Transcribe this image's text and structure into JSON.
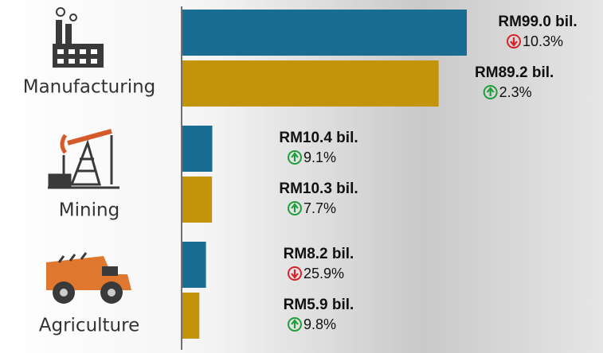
{
  "chart_data": {
    "type": "bar",
    "orientation": "horizontal",
    "categories": [
      "Manufacturing",
      "Mining",
      "Agriculture"
    ],
    "change_colors": {
      "up": "#1f9e3c",
      "down": "#d8232a"
    },
    "series": [
      {
        "color": "#1a6d92",
        "values": [
          99.0,
          10.4,
          8.2
        ],
        "value_labels": [
          "RM99.0 bil.",
          "RM10.4 bil.",
          "RM8.2 bil."
        ],
        "changes": [
          -10.3,
          9.1,
          -25.9
        ],
        "change_labels": [
          "10.3%",
          "9.1%",
          "25.9%"
        ]
      },
      {
        "color": "#c39409",
        "values": [
          89.2,
          10.3,
          5.9
        ],
        "value_labels": [
          "RM89.2 bil.",
          "RM10.3 bil.",
          "RM5.9 bil."
        ],
        "changes": [
          2.3,
          7.7,
          9.8
        ],
        "change_labels": [
          "2.3%",
          "7.7%",
          "9.8%"
        ]
      }
    ]
  }
}
